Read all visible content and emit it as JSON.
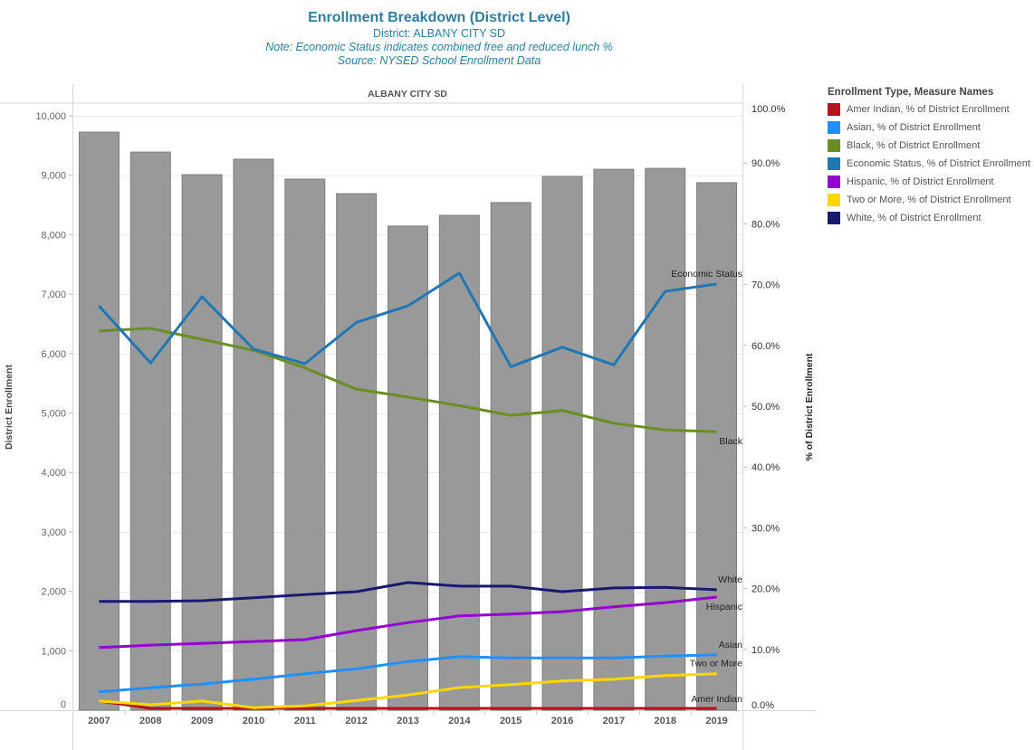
{
  "header": {
    "title": "Enrollment Breakdown (District Level)",
    "district_line": "District: ALBANY CITY SD",
    "note": "Note: Economic Status indicates combined free and reduced lunch %",
    "source": "Source: NYSED School Enrollment Data"
  },
  "legend": {
    "title": "Enrollment Type, Measure Names",
    "items": [
      {
        "label": "Amer Indian, % of District Enrollment",
        "color": "#b5121b"
      },
      {
        "label": "Asian, % of District Enrollment",
        "color": "#1e90ff"
      },
      {
        "label": "Black, % of District Enrollment",
        "color": "#6b8e23"
      },
      {
        "label": "Economic Status, % of District Enrollment",
        "color": "#1f77b4"
      },
      {
        "label": "Hispanic, % of District Enrollment",
        "color": "#9400d3"
      },
      {
        "label": "Two or More, % of District Enrollment",
        "color": "#ffd700"
      },
      {
        "label": "White, % of District Enrollment",
        "color": "#191970"
      }
    ]
  },
  "chart_data": {
    "type": "bar",
    "panel_title": "ALBANY CITY SD",
    "categories": [
      "2007",
      "2008",
      "2009",
      "2010",
      "2011",
      "2012",
      "2013",
      "2014",
      "2015",
      "2016",
      "2017",
      "2018",
      "2019"
    ],
    "bars": {
      "name": "District Enrollment",
      "color": "#999999",
      "values": [
        9725,
        9390,
        9010,
        9270,
        8935,
        8690,
        8145,
        8325,
        8540,
        8980,
        9100,
        9115,
        8875
      ]
    },
    "left_axis": {
      "label": "District Enrollment",
      "range": [
        0,
        10000
      ],
      "ticks": [
        "0",
        "1,000",
        "2,000",
        "3,000",
        "4,000",
        "5,000",
        "6,000",
        "7,000",
        "8,000",
        "9,000",
        "10,000"
      ]
    },
    "right_axis": {
      "label": "% of District Enrollment",
      "range": [
        0,
        100
      ],
      "ticks": [
        "0.0%",
        "10.0%",
        "20.0%",
        "30.0%",
        "40.0%",
        "50.0%",
        "60.0%",
        "70.0%",
        "80.0%",
        "90.0%",
        "100.0%"
      ]
    },
    "series": [
      {
        "name": "Economic Status",
        "color": "#1f77b4",
        "values": [
          66.5,
          57.1,
          68.0,
          59.4,
          57.0,
          63.8,
          66.5,
          71.9,
          56.5,
          59.7,
          56.8,
          68.9,
          70.1
        ]
      },
      {
        "name": "Black",
        "color": "#6b8e23",
        "values": [
          62.4,
          62.8,
          61.0,
          59.2,
          56.3,
          52.8,
          51.5,
          50.1,
          48.5,
          49.3,
          47.2,
          46.1,
          45.8
        ]
      },
      {
        "name": "White",
        "color": "#191970",
        "values": [
          17.9,
          17.9,
          18.0,
          18.5,
          19.0,
          19.5,
          21.0,
          20.4,
          20.4,
          19.5,
          20.1,
          20.2,
          19.8
        ]
      },
      {
        "name": "Hispanic",
        "color": "#9400d3",
        "values": [
          10.3,
          10.7,
          11.0,
          11.3,
          11.6,
          13.1,
          14.4,
          15.5,
          15.8,
          16.2,
          17.0,
          17.7,
          18.6
        ]
      },
      {
        "name": "Asian",
        "color": "#1e90ff",
        "values": [
          3.0,
          3.7,
          4.3,
          5.1,
          6.0,
          6.8,
          8.0,
          8.8,
          8.6,
          8.6,
          8.6,
          8.9,
          9.1
        ]
      },
      {
        "name": "Two or More",
        "color": "#ffd700",
        "values": [
          1.5,
          0.9,
          1.5,
          0.4,
          0.7,
          1.6,
          2.5,
          3.7,
          4.2,
          4.8,
          5.1,
          5.7,
          6.0
        ]
      },
      {
        "name": "Amer Indian",
        "color": "#b5121b",
        "values": [
          1.5,
          0.3,
          0.3,
          0.3,
          0.3,
          0.3,
          0.3,
          0.3,
          0.3,
          0.3,
          0.3,
          0.3,
          0.3
        ]
      }
    ],
    "line_labels": [
      "Economic Status",
      "Black",
      "White",
      "Hispanic",
      "Asian",
      "Two or More",
      "Amer Indian"
    ],
    "grid": true,
    "legend_position": "right"
  }
}
